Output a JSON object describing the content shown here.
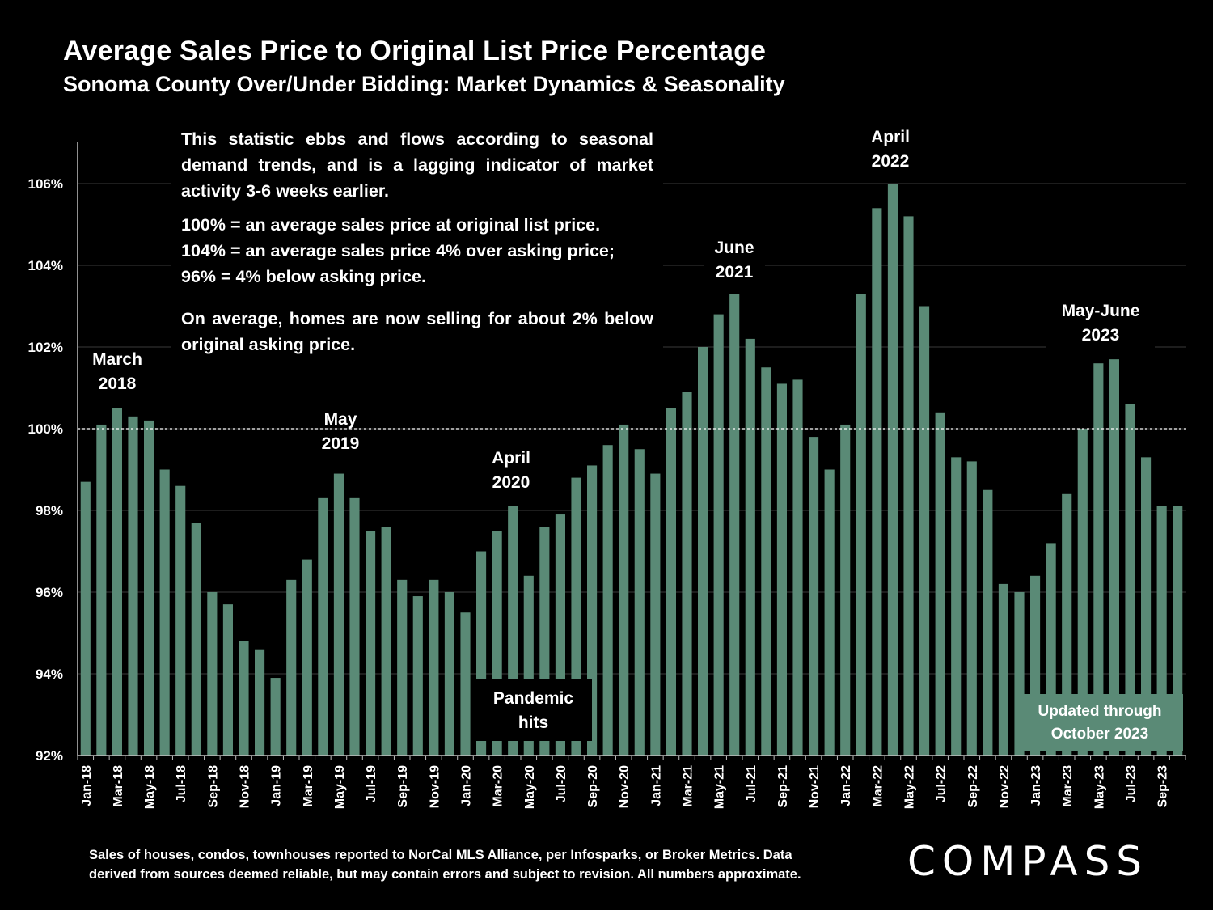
{
  "header": {
    "title": "Average Sales Price to Original List Price Percentage",
    "subtitle": "Sonoma County Over/Under Bidding: Market Dynamics & Seasonality"
  },
  "description": {
    "p1": "This statistic ebbs and flows according to seasonal demand trends, and is a lagging indicator of market activity 3-6 weeks earlier.",
    "p2a": "100% = an average sales price at original list price.",
    "p2b": "104% = an average sales price 4% over asking price;",
    "p2c": "96% = 4% below asking price.",
    "p3": "On average, homes are now selling for about 2% below original asking price."
  },
  "annotations": {
    "march2018": {
      "line1": "March",
      "line2": "2018"
    },
    "may2019": {
      "line1": "May",
      "line2": "2019"
    },
    "april2020": {
      "line1": "April",
      "line2": "2020"
    },
    "june2021": {
      "line1": "June",
      "line2": "2021"
    },
    "april2022": {
      "line1": "April",
      "line2": "2022"
    },
    "mayjune2023": {
      "line1": "May-June",
      "line2": "2023"
    },
    "pandemic": {
      "line1": "Pandemic",
      "line2": "hits"
    },
    "updated": {
      "line1": "Updated through",
      "line2": "October 2023"
    }
  },
  "footnote": {
    "line1": "Sales of houses, condos, townhouses reported to NorCal MLS Alliance, per Infosparks, or Broker Metrics. Data",
    "line2": "derived from sources deemed reliable, but may contain errors and subject to revision. All numbers approximate."
  },
  "brand": {
    "logo": "COMPASS"
  },
  "colors": {
    "bar": "#5a8a76",
    "background": "#000000",
    "text": "#ffffff",
    "axis": "#bfbfbf"
  },
  "chart_data": {
    "type": "bar",
    "title": "Average Sales Price to Original List Price Percentage",
    "ylabel": "",
    "xlabel": "",
    "ylim": [
      92,
      107
    ],
    "yticks": [
      92,
      94,
      96,
      98,
      100,
      102,
      104,
      106
    ],
    "ytick_labels": [
      "92%",
      "94%",
      "96%",
      "98%",
      "100%",
      "102%",
      "104%",
      "106%"
    ],
    "reference_line": 100,
    "categories": [
      "Jan-18",
      "Feb-18",
      "Mar-18",
      "Apr-18",
      "May-18",
      "Jun-18",
      "Jul-18",
      "Aug-18",
      "Sep-18",
      "Oct-18",
      "Nov-18",
      "Dec-18",
      "Jan-19",
      "Feb-19",
      "Mar-19",
      "Apr-19",
      "May-19",
      "Jun-19",
      "Jul-19",
      "Aug-19",
      "Sep-19",
      "Oct-19",
      "Nov-19",
      "Dec-19",
      "Jan-20",
      "Feb-20",
      "Mar-20",
      "Apr-20",
      "May-20",
      "Jun-20",
      "Jul-20",
      "Aug-20",
      "Sep-20",
      "Oct-20",
      "Nov-20",
      "Dec-20",
      "Jan-21",
      "Feb-21",
      "Mar-21",
      "Apr-21",
      "May-21",
      "Jun-21",
      "Jul-21",
      "Aug-21",
      "Sep-21",
      "Oct-21",
      "Nov-21",
      "Dec-21",
      "Jan-22",
      "Feb-22",
      "Mar-22",
      "Apr-22",
      "May-22",
      "Jun-22",
      "Jul-22",
      "Aug-22",
      "Sep-22",
      "Oct-22",
      "Nov-22",
      "Dec-22",
      "Jan-23",
      "Feb-23",
      "Mar-23",
      "Apr-23",
      "May-23",
      "Jun-23",
      "Jul-23",
      "Aug-23",
      "Sep-23",
      "Oct-23"
    ],
    "values": [
      98.7,
      100.1,
      100.5,
      100.3,
      100.2,
      99.0,
      98.6,
      97.7,
      96.0,
      95.7,
      94.8,
      94.6,
      93.9,
      96.3,
      96.8,
      98.3,
      98.9,
      98.3,
      97.5,
      97.6,
      96.3,
      95.9,
      96.3,
      96.0,
      95.5,
      97.0,
      97.5,
      98.1,
      96.4,
      97.6,
      97.9,
      98.8,
      99.1,
      99.6,
      100.1,
      99.5,
      98.9,
      100.5,
      100.9,
      102.0,
      102.8,
      103.3,
      102.2,
      101.5,
      101.1,
      101.2,
      99.8,
      99.0,
      100.1,
      103.3,
      105.4,
      106.0,
      105.2,
      103.0,
      100.4,
      99.3,
      99.2,
      98.5,
      96.2,
      96.0,
      96.4,
      97.2,
      98.4,
      100.0,
      101.6,
      101.7,
      100.6,
      99.3,
      98.1,
      98.1
    ],
    "label_every": 2
  }
}
